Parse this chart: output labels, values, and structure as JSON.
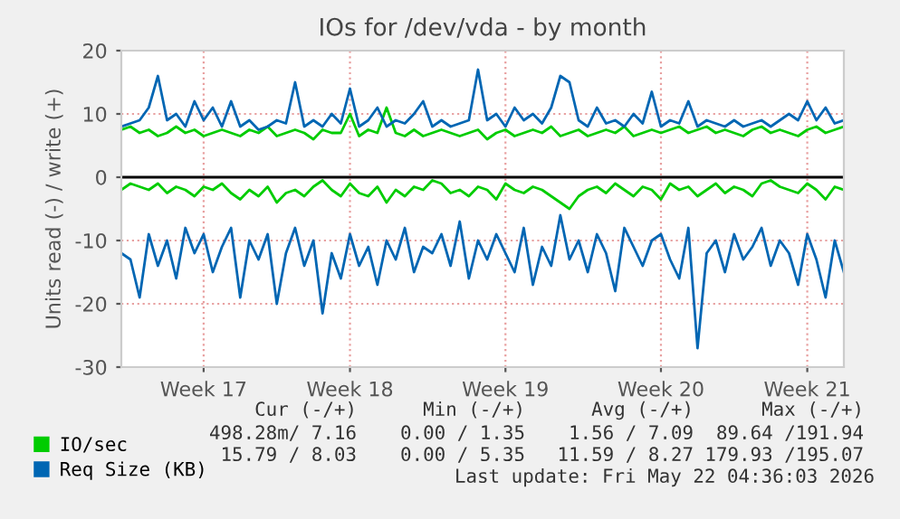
{
  "chart_data": {
    "type": "line",
    "title": "IOs for /dev/vda - by month",
    "ylabel": "Units read (-) / write (+)",
    "categories": [
      null,
      null,
      null,
      null,
      null,
      null,
      null,
      null,
      null,
      "Week 17",
      null,
      null,
      null,
      null,
      null,
      null,
      null,
      null,
      null,
      null,
      null,
      null,
      null,
      null,
      null,
      "Week 18",
      null,
      null,
      null,
      null,
      null,
      null,
      null,
      null,
      null,
      null,
      null,
      null,
      null,
      null,
      null,
      null,
      "Week 19",
      null,
      null,
      null,
      null,
      null,
      null,
      null,
      null,
      null,
      null,
      null,
      null,
      null,
      null,
      null,
      null,
      "Week 20",
      null,
      null,
      null,
      null,
      null,
      null,
      null,
      null,
      null,
      null,
      null,
      null,
      null,
      null,
      null,
      "Week 21",
      null,
      null,
      null,
      null
    ],
    "series": [
      {
        "color": "#00cc00",
        "values": [
          -2,
          -1,
          -1.5,
          -2,
          -1,
          -2.5,
          -1.5,
          -2,
          -3,
          -1.5,
          -2,
          -1,
          -2.5,
          -3.5,
          -2,
          -3,
          -1.5,
          -4,
          -2.5,
          -2,
          -3,
          -1.5,
          -0.5,
          -2,
          -3,
          -1,
          -2.5,
          -3,
          -1.5,
          -4,
          -2,
          -3,
          -1.5,
          -2,
          -0.5,
          -1,
          -2.5,
          -2,
          -3,
          -1.5,
          -2,
          -3.5,
          -1,
          -2,
          -2.5,
          -1.5,
          -2,
          -3,
          -4,
          -5,
          -3,
          -2,
          -1.5,
          -2.5,
          -1,
          -2,
          -3,
          -1.5,
          -2,
          -3.5,
          -1,
          -2,
          -1.5,
          -3,
          -2,
          -1,
          -2.5,
          -1.5,
          -2,
          -3,
          -1,
          -0.5,
          -1.5,
          -2,
          -2.5,
          -1,
          -2,
          -3.5,
          -1.5,
          -2
        ]
      },
      {
        "name": "IO/sec",
        "color": "#00cc00",
        "values": [
          7.5,
          8,
          7,
          7.5,
          6.5,
          7,
          8,
          7,
          7.5,
          6.5,
          7,
          7.5,
          7,
          6.5,
          7.5,
          7,
          8,
          6.5,
          7,
          7.5,
          7,
          6,
          7.5,
          7,
          7,
          10,
          6.5,
          7.5,
          7,
          11,
          7,
          6.5,
          7.5,
          6.5,
          7,
          7.5,
          7,
          6.5,
          7,
          7.5,
          6,
          7,
          7.5,
          6.5,
          7,
          7.5,
          7,
          8,
          6.5,
          7,
          7.5,
          6.5,
          7,
          7.5,
          7,
          8,
          6.5,
          7,
          7.5,
          7,
          7.5,
          8,
          7,
          7.5,
          8,
          7,
          7.5,
          7,
          6.5,
          7.5,
          8,
          7,
          7.5,
          7,
          6.5,
          7.5,
          8,
          7,
          7.5,
          8
        ]
      },
      {
        "color": "#0066b3",
        "values": [
          -12,
          -13,
          -19,
          -9,
          -14,
          -10,
          -16,
          -8,
          -12,
          -9,
          -15,
          -11,
          -8,
          -19,
          -10,
          -13,
          -9,
          -20,
          -12,
          -8,
          -14,
          -10,
          -21.5,
          -12,
          -16,
          -9,
          -14,
          -11,
          -17,
          -10,
          -13,
          -8,
          -15,
          -11,
          -12,
          -9,
          -14,
          -7,
          -16,
          -10,
          -13,
          -9,
          -12,
          -15,
          -8,
          -17,
          -11,
          -14,
          -6,
          -13,
          -10,
          -15,
          -9,
          -12,
          -18,
          -8,
          -11,
          -14,
          -10,
          -9,
          -13,
          -16,
          -8,
          -27,
          -12,
          -10,
          -15,
          -9,
          -13,
          -11,
          -8,
          -14,
          -10,
          -12,
          -17,
          -9,
          -13,
          -19,
          -10,
          -15
        ]
      },
      {
        "name": "Req Size (KB)",
        "color": "#0066b3",
        "values": [
          8,
          8.5,
          9,
          11,
          16,
          9,
          10,
          8,
          12,
          9,
          11,
          8,
          12,
          8,
          9,
          7.5,
          8,
          9,
          8.5,
          15,
          8,
          9,
          8,
          10,
          8.5,
          14,
          8,
          9,
          11,
          8,
          9,
          8.5,
          10,
          12,
          8,
          9,
          8,
          8.5,
          9,
          17,
          9,
          10,
          8,
          11,
          9,
          10,
          8.5,
          11,
          16,
          15,
          9,
          8,
          11,
          8.5,
          9,
          8,
          10,
          8.5,
          13.5,
          8,
          9,
          8.5,
          12,
          8,
          9,
          8.5,
          8,
          9,
          8,
          8.5,
          9,
          8,
          9,
          10,
          9,
          12,
          9,
          11,
          8.5,
          9
        ]
      }
    ],
    "ylim": [
      -30,
      20
    ],
    "yticks": [
      -30,
      -20,
      -10,
      0,
      10,
      20
    ],
    "grid": true,
    "legend": "bottom left",
    "ref_lines": [
      {
        "axis": "y",
        "value": 0,
        "color": "#000000"
      }
    ],
    "annotations": [
      "Cur (-/+)",
      "Min (-/+)",
      "Avg (-/+)",
      "Max (-/+)",
      "498.28m/ 7.16",
      "0.00 / 1.35",
      "1.56 / 7.09",
      "89.64 /191.94",
      "15.79 / 8.03",
      "0.00 / 5.35",
      "11.59 / 8.27",
      "179.93 /195.07",
      "Last update: Fri May 22 04:36:03 2026"
    ]
  }
}
